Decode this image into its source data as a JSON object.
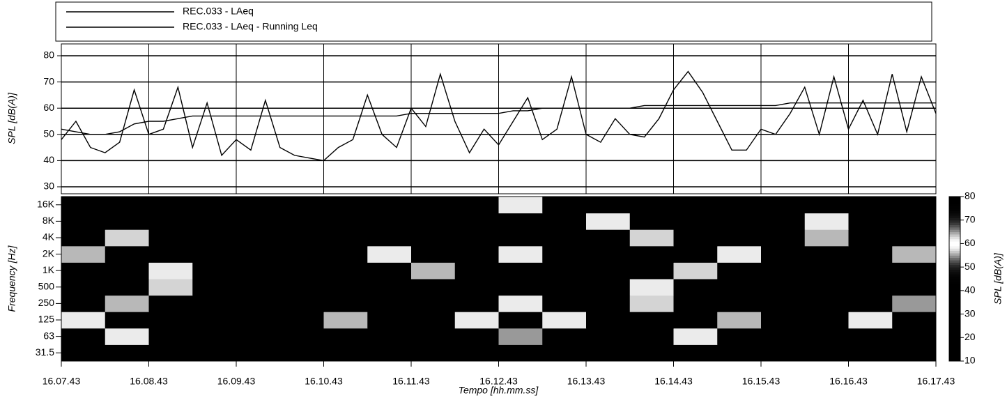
{
  "chart_data": [
    {
      "type": "line",
      "ylabel": "SPL [dB(A)]",
      "x": [
        "16.07.43",
        "16.07.53",
        "16.08.03",
        "16.08.13",
        "16.08.23",
        "16.08.33",
        "16.08.43",
        "16.08.53",
        "16.09.03",
        "16.09.13",
        "16.09.23",
        "16.09.33",
        "16.09.43",
        "16.09.53",
        "16.10.03",
        "16.10.13",
        "16.10.23",
        "16.10.33",
        "16.10.43",
        "16.10.53",
        "16.11.03",
        "16.11.13",
        "16.11.23",
        "16.11.33",
        "16.11.43",
        "16.11.53",
        "16.12.03",
        "16.12.13",
        "16.12.23",
        "16.12.33",
        "16.12.43",
        "16.12.53",
        "16.13.03",
        "16.13.13",
        "16.13.23",
        "16.13.33",
        "16.13.43",
        "16.13.53",
        "16.14.03",
        "16.14.13",
        "16.14.23",
        "16.14.33",
        "16.14.43",
        "16.14.53",
        "16.15.03",
        "16.15.13",
        "16.15.23",
        "16.15.33",
        "16.15.43",
        "16.15.53",
        "16.16.03",
        "16.16.13",
        "16.16.23",
        "16.16.33",
        "16.16.43",
        "16.16.53",
        "16.17.03",
        "16.17.13",
        "16.17.23",
        "16.17.33",
        "16.17.43"
      ],
      "series": [
        {
          "name": "REC.033 - LAeq",
          "color": "#000000",
          "values": [
            48,
            55,
            45,
            43,
            47,
            67,
            50,
            52,
            68,
            45,
            62,
            42,
            48,
            44,
            63,
            45,
            42,
            41,
            40,
            45,
            48,
            65,
            50,
            45,
            60,
            53,
            73,
            55,
            43,
            52,
            46,
            55,
            64,
            48,
            52,
            72,
            50,
            47,
            56,
            50,
            49,
            56,
            67,
            74,
            66,
            55,
            44,
            44,
            52,
            50,
            58,
            68,
            50,
            72,
            52,
            63,
            50,
            73,
            51,
            72,
            58
          ]
        },
        {
          "name": "REC.033 - LAeq - Running Leq",
          "color": "#000000",
          "values": [
            52,
            51,
            50,
            50,
            51,
            54,
            55,
            55,
            56,
            57,
            57,
            57,
            57,
            57,
            57,
            57,
            57,
            57,
            57,
            57,
            57,
            57,
            57,
            57,
            58,
            58,
            58,
            58,
            58,
            58,
            58,
            59,
            59,
            60,
            60,
            60,
            60,
            60,
            60,
            60,
            61,
            61,
            61,
            61,
            61,
            61,
            61,
            61,
            61,
            61,
            62,
            62,
            62,
            62,
            62,
            62,
            62,
            62,
            62,
            62,
            62
          ]
        }
      ],
      "ylim": [
        30,
        80
      ],
      "yticks": [
        30,
        40,
        50,
        60,
        70,
        80
      ],
      "xticks": [
        "16.07.43",
        "16.08.43",
        "16.09.43",
        "16.10.43",
        "16.11.43",
        "16.12.43",
        "16.13.43",
        "16.14.43",
        "16.15.43",
        "16.16.43",
        "16.17.43"
      ],
      "grid": true
    },
    {
      "type": "heatmap",
      "ylabel": "Frequency [Hz]",
      "xlabel": "Tempo [hh.mm.ss]",
      "y": [
        "31.5",
        "63",
        "125",
        "250",
        "500",
        "1K",
        "2K",
        "4K",
        "8K",
        "16K"
      ],
      "z": [
        [
          15,
          15,
          15,
          15,
          15,
          15,
          15,
          15,
          15,
          15,
          15,
          15,
          15,
          15,
          15,
          15,
          15,
          15,
          15,
          15
        ],
        [
          20,
          58,
          20,
          20,
          20,
          20,
          20,
          20,
          20,
          20,
          55,
          20,
          20,
          20,
          58,
          20,
          20,
          20,
          20,
          20
        ],
        [
          58,
          20,
          20,
          20,
          20,
          20,
          56,
          20,
          20,
          58,
          20,
          58,
          20,
          20,
          20,
          56,
          20,
          20,
          58,
          20
        ],
        [
          20,
          56,
          20,
          20,
          20,
          20,
          20,
          20,
          20,
          20,
          58,
          20,
          20,
          57,
          20,
          20,
          20,
          20,
          20,
          55
        ],
        [
          20,
          20,
          57,
          20,
          20,
          20,
          20,
          20,
          22,
          20,
          20,
          20,
          20,
          58,
          20,
          20,
          20,
          20,
          20,
          20
        ],
        [
          20,
          20,
          58,
          20,
          20,
          20,
          20,
          20,
          56,
          20,
          20,
          20,
          20,
          20,
          57,
          20,
          20,
          20,
          20,
          20
        ],
        [
          56,
          20,
          20,
          20,
          20,
          20,
          20,
          58,
          20,
          20,
          58,
          20,
          20,
          20,
          20,
          58,
          20,
          20,
          20,
          56
        ],
        [
          20,
          57,
          20,
          20,
          20,
          20,
          20,
          20,
          20,
          20,
          20,
          20,
          20,
          57,
          20,
          20,
          20,
          56,
          20,
          20
        ],
        [
          20,
          20,
          20,
          20,
          20,
          20,
          20,
          20,
          20,
          20,
          20,
          20,
          58,
          20,
          20,
          20,
          20,
          58,
          20,
          20
        ],
        [
          20,
          20,
          20,
          20,
          20,
          20,
          20,
          20,
          20,
          20,
          58,
          20,
          20,
          20,
          20,
          20,
          20,
          20,
          20,
          20
        ]
      ],
      "clim": [
        10,
        80
      ],
      "cticks": [
        10,
        20,
        30,
        40,
        50,
        60,
        70,
        80
      ],
      "clabel": "SPL [dB(A)]"
    }
  ]
}
